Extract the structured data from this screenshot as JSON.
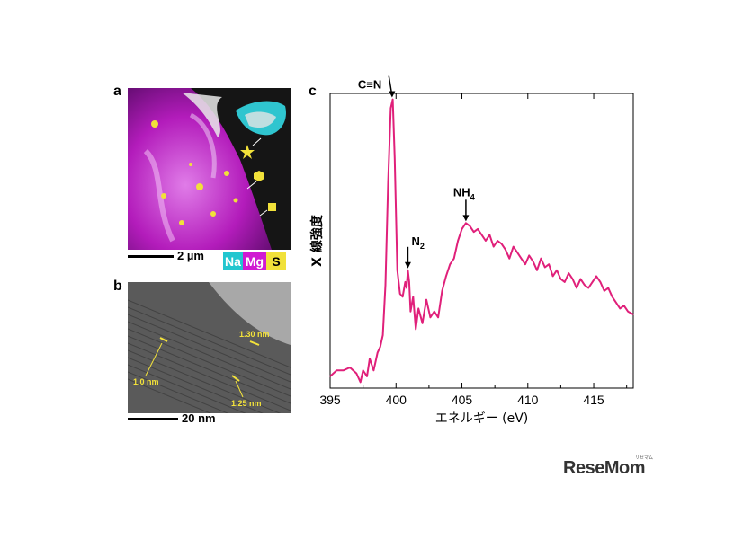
{
  "panels": {
    "a": {
      "letter": "a",
      "scale_label": "2 µm",
      "legend": [
        {
          "label": "Na",
          "color": "#22c6cf"
        },
        {
          "label": "Mg",
          "color": "#d01ad2"
        },
        {
          "label": "S",
          "color": "#f1e13a"
        }
      ]
    },
    "b": {
      "letter": "b",
      "scale_label": "20 nm",
      "annotations": [
        "1.0 nm",
        "1.30 nm",
        "1.25 nm"
      ]
    },
    "c": {
      "letter": "c"
    }
  },
  "chart_data": {
    "type": "line",
    "xlabel": "エネルギー (eV)",
    "ylabel": "X 線強度",
    "xlim": [
      395,
      418
    ],
    "xticks": [
      395,
      400,
      405,
      410,
      415
    ],
    "grid": false,
    "line_color": "#e0207a",
    "annotations": [
      {
        "text": "C≡N",
        "x": 399.7
      },
      {
        "text": "N2",
        "x": 400.9
      },
      {
        "text": "NH4",
        "x": 405.3
      }
    ],
    "x": [
      395.0,
      395.5,
      396.0,
      396.5,
      397.0,
      397.3,
      397.5,
      397.8,
      398.0,
      398.3,
      398.6,
      398.8,
      399.0,
      399.2,
      399.4,
      399.6,
      399.75,
      399.9,
      400.1,
      400.3,
      400.5,
      400.7,
      400.8,
      400.9,
      401.0,
      401.1,
      401.3,
      401.5,
      401.7,
      402.0,
      402.3,
      402.6,
      402.9,
      403.2,
      403.5,
      403.8,
      404.1,
      404.4,
      404.7,
      405.0,
      405.3,
      405.6,
      405.9,
      406.2,
      406.5,
      406.8,
      407.1,
      407.4,
      407.7,
      408.0,
      408.3,
      408.6,
      408.9,
      409.2,
      409.5,
      409.8,
      410.1,
      410.4,
      410.7,
      411.0,
      411.3,
      411.6,
      411.9,
      412.2,
      412.5,
      412.8,
      413.1,
      413.4,
      413.7,
      414.0,
      414.3,
      414.6,
      414.9,
      415.2,
      415.5,
      415.8,
      416.1,
      416.4,
      416.7,
      417.0,
      417.3,
      417.6,
      418.0
    ],
    "y": [
      0.04,
      0.06,
      0.06,
      0.07,
      0.05,
      0.02,
      0.06,
      0.04,
      0.1,
      0.06,
      0.12,
      0.14,
      0.18,
      0.35,
      0.7,
      0.95,
      0.98,
      0.78,
      0.4,
      0.32,
      0.31,
      0.36,
      0.34,
      0.4,
      0.36,
      0.26,
      0.31,
      0.2,
      0.27,
      0.22,
      0.3,
      0.24,
      0.26,
      0.24,
      0.33,
      0.38,
      0.42,
      0.44,
      0.5,
      0.54,
      0.56,
      0.55,
      0.53,
      0.54,
      0.52,
      0.5,
      0.52,
      0.48,
      0.5,
      0.49,
      0.47,
      0.44,
      0.48,
      0.46,
      0.44,
      0.42,
      0.45,
      0.43,
      0.4,
      0.44,
      0.41,
      0.42,
      0.38,
      0.4,
      0.37,
      0.36,
      0.39,
      0.37,
      0.34,
      0.37,
      0.35,
      0.34,
      0.36,
      0.38,
      0.36,
      0.33,
      0.34,
      0.31,
      0.29,
      0.27,
      0.28,
      0.26,
      0.25
    ]
  },
  "logo": {
    "text": "ReseMom",
    "small": "リセマム"
  }
}
